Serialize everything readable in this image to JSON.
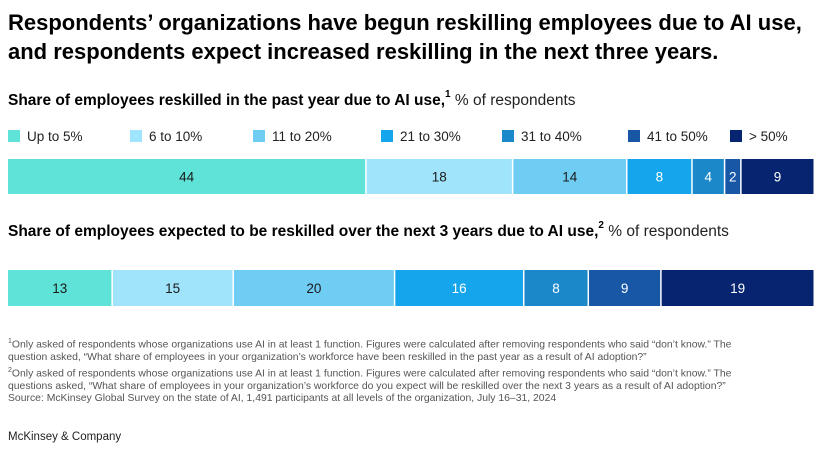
{
  "headline": "Respondents’ organizations have begun reskilling employees due to AI use, and respondents expect increased reskilling in the next three years.",
  "legend": [
    {
      "label": "Up to 5%",
      "color": "#5fe3d9"
    },
    {
      "label": "6 to 10%",
      "color": "#9fe4fb"
    },
    {
      "label": "11 to 20%",
      "color": "#6fcdf4"
    },
    {
      "label": "21 to 30%",
      "color": "#14a5ec"
    },
    {
      "label": "31 to 40%",
      "color": "#1a88c9"
    },
    {
      "label": "41 to 50%",
      "color": "#1757a6"
    },
    {
      "label": "> 50%",
      "color": "#072470"
    }
  ],
  "chart_data": [
    {
      "type": "bar",
      "orientation": "horizontal-stacked-100",
      "title": "Share of employees reskilled in the past year due to AI use,",
      "title_footnote": "1",
      "unit_label": "% of respondents",
      "categories": [
        "Up to 5%",
        "6 to 10%",
        "11 to 20%",
        "21 to 30%",
        "31 to 40%",
        "41 to 50%",
        "> 50%"
      ],
      "values": [
        44,
        18,
        14,
        8,
        4,
        2,
        9
      ]
    },
    {
      "type": "bar",
      "orientation": "horizontal-stacked-100",
      "title": "Share of employees expected to be reskilled over the next 3 years due to AI use,",
      "title_footnote": "2",
      "unit_label": "% of respondents",
      "categories": [
        "Up to 5%",
        "6 to 10%",
        "11 to 20%",
        "21 to 30%",
        "31 to 40%",
        "41 to 50%",
        "> 50%"
      ],
      "values": [
        13,
        15,
        20,
        16,
        8,
        9,
        19
      ]
    }
  ],
  "footnotes": {
    "n1_mark": "1",
    "n1_line1": "Only asked of respondents whose organizations use AI in at least 1 function. Figures were calculated after removing respondents who said “don’t know.” The",
    "n1_line2": "question asked, “What share of employees in your organization’s workforce have been reskilled in the past year as a result of AI adoption?”",
    "n2_mark": "2",
    "n2_line1": "Only asked of respondents whose organizations use AI in at least 1 function. Figures were calculated after removing respondents who said “don’t know.” The",
    "n2_line2": "questions asked, “What share of employees in your organization’s workforce do you expect will be reskilled over the next 3 years as a result of AI adoption?”",
    "source": "Source: McKinsey Global Survey on the state of AI, 1,491 participants at all levels of the organization, July 16–31, 2024"
  },
  "brand": "McKinsey & Company"
}
